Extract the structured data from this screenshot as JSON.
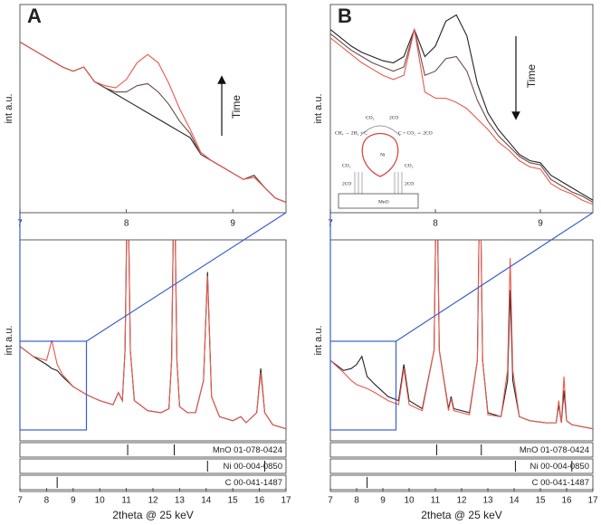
{
  "chart_data": [
    {
      "type": "line",
      "label": "A",
      "ylabel": "int a.u.",
      "annotation": "Time",
      "x": [
        7,
        7.1,
        7.2,
        7.3,
        7.4,
        7.5,
        7.6,
        7.7,
        7.8,
        7.9,
        8,
        8.1,
        8.2,
        8.3,
        8.4,
        8.5,
        8.6,
        8.7,
        8.8,
        8.9,
        9,
        9.1,
        9.2,
        9.3,
        9.4,
        9.5
      ],
      "series": [
        {
          "color": "#222222",
          "values": [
            82,
            79,
            76,
            73,
            70,
            68,
            70,
            63,
            60,
            57,
            54,
            51,
            48,
            45,
            42,
            39,
            36,
            28,
            25,
            22,
            19,
            16,
            18,
            12,
            7,
            5
          ]
        },
        {
          "color": "#6b4a4a",
          "values": [
            82,
            79,
            76,
            73,
            70,
            68,
            70,
            63,
            60,
            58,
            58,
            61,
            62,
            58,
            52,
            44,
            38,
            28,
            25,
            22,
            19,
            16,
            18,
            12,
            7,
            5
          ]
        },
        {
          "color": "#e8594f",
          "values": [
            82,
            79,
            76,
            73,
            70,
            68,
            70,
            63,
            61,
            60,
            64,
            72,
            76,
            72,
            62,
            50,
            40,
            29,
            25,
            22,
            19,
            16,
            17,
            12,
            7,
            5
          ]
        }
      ],
      "xlim": [
        7,
        9.5
      ],
      "xticks": [
        7,
        8,
        9
      ],
      "ylim": [
        0,
        100
      ]
    },
    {
      "type": "line",
      "ylabel": "int a.u.",
      "xlabel": "2theta @ 25 keV",
      "x": [
        7,
        7.5,
        8,
        8.2,
        8.4,
        8.6,
        9,
        9.5,
        10,
        10.5,
        10.7,
        10.85,
        10.95,
        11.05,
        11.15,
        11.3,
        11.8,
        12.3,
        12.6,
        12.7,
        12.8,
        12.9,
        13,
        13.3,
        13.6,
        13.9,
        14.05,
        14.2,
        14.5,
        15,
        15.3,
        15.5,
        15.9,
        16.05,
        16.2,
        16.5,
        17
      ],
      "series": [
        {
          "color": "#222222",
          "values": [
            47,
            42,
            38,
            36,
            35,
            32,
            27,
            23,
            20,
            18,
            24,
            20,
            45,
            140,
            45,
            20,
            15,
            14,
            16,
            40,
            140,
            40,
            17,
            14,
            14,
            30,
            84,
            22,
            12,
            10,
            12,
            9,
            14,
            36,
            14,
            8,
            6
          ]
        },
        {
          "color": "#e8594f",
          "values": [
            47,
            42,
            40,
            50,
            38,
            33,
            27,
            23,
            20,
            18,
            24,
            20,
            45,
            140,
            45,
            20,
            15,
            14,
            16,
            40,
            140,
            40,
            17,
            14,
            14,
            30,
            82,
            22,
            12,
            10,
            12,
            9,
            14,
            34,
            14,
            8,
            6
          ]
        }
      ],
      "xlim": [
        7,
        17
      ],
      "xticks": [
        7,
        8,
        9,
        10,
        11,
        12,
        13,
        14,
        15,
        16,
        17
      ],
      "ylim": [
        0,
        100
      ],
      "references": [
        {
          "label": "MnO 01-078-0424",
          "peaks": [
            11.05,
            12.8
          ]
        },
        {
          "label": "Ni 00-004-0850",
          "peaks": [
            14.05,
            16.2
          ]
        },
        {
          "label": "C 00-041-1487",
          "peaks": [
            8.4
          ]
        }
      ]
    },
    {
      "type": "line",
      "label": "B",
      "ylabel": "int a.u.",
      "annotation": "Time",
      "x": [
        7,
        7.1,
        7.2,
        7.3,
        7.4,
        7.5,
        7.6,
        7.7,
        7.8,
        7.9,
        8,
        8.1,
        8.2,
        8.3,
        8.4,
        8.5,
        8.6,
        8.7,
        8.8,
        8.9,
        9,
        9.1,
        9.2,
        9.3,
        9.4,
        9.5
      ],
      "series": [
        {
          "color": "#222222",
          "values": [
            88,
            84,
            80,
            77,
            75,
            73,
            72,
            75,
            88,
            75,
            80,
            92,
            95,
            85,
            62,
            48,
            40,
            34,
            28,
            25,
            24,
            18,
            15,
            12,
            9,
            6
          ]
        },
        {
          "color": "#6b4a4a",
          "values": [
            86,
            82,
            78,
            75,
            72,
            70,
            68,
            70,
            88,
            66,
            68,
            74,
            75,
            68,
            54,
            44,
            37,
            32,
            27,
            24,
            23,
            16,
            13,
            10,
            8,
            5
          ]
        },
        {
          "color": "#e8594f",
          "values": [
            84,
            80,
            76,
            72,
            69,
            66,
            64,
            66,
            88,
            58,
            55,
            55,
            53,
            50,
            45,
            40,
            34,
            30,
            25,
            22,
            21,
            14,
            11,
            9,
            6,
            4
          ]
        }
      ],
      "xlim": [
        7,
        9.5
      ],
      "xticks": [
        7,
        8,
        9
      ],
      "ylim": [
        0,
        100
      ],
      "inset": {
        "labels": [
          "CO₂",
          "2CO",
          "CH₄ → 2H₂ + C",
          "C + CO₂ ⇔ 2CO",
          "Ni",
          "CO₂",
          "2CO",
          "CO₂",
          "2CO",
          "MnO"
        ]
      }
    },
    {
      "type": "line",
      "ylabel": "int a.u.",
      "xlabel": "2theta @ 25 keV",
      "x": [
        7,
        7.5,
        7.8,
        8,
        8.2,
        8.4,
        8.7,
        9.2,
        9.6,
        9.8,
        10,
        10.5,
        10.95,
        11.05,
        11.15,
        11.5,
        11.6,
        11.7,
        12.3,
        12.6,
        12.7,
        12.8,
        13,
        13.5,
        13.75,
        13.85,
        13.95,
        14.2,
        14.6,
        15.2,
        15.6,
        15.7,
        15.8,
        15.9,
        16,
        16.2,
        17
      ],
      "series": [
        {
          "color": "#222222",
          "values": [
            40,
            35,
            36,
            38,
            42,
            32,
            28,
            22,
            20,
            38,
            20,
            16,
            45,
            140,
            45,
            16,
            22,
            16,
            14,
            40,
            140,
            40,
            14,
            12,
            30,
            75,
            30,
            12,
            10,
            9,
            9,
            18,
            9,
            25,
            10,
            8,
            6
          ]
        },
        {
          "color": "#e8594f",
          "values": [
            40,
            34,
            30,
            28,
            27,
            26,
            24,
            20,
            18,
            36,
            18,
            15,
            45,
            140,
            45,
            15,
            21,
            15,
            13,
            40,
            140,
            40,
            13,
            12,
            35,
            91,
            35,
            12,
            10,
            9,
            9,
            20,
            9,
            32,
            10,
            8,
            6
          ]
        }
      ],
      "xlim": [
        7,
        17
      ],
      "xticks": [
        7,
        8,
        9,
        10,
        11,
        12,
        13,
        14,
        15,
        16,
        17
      ],
      "ylim": [
        0,
        100
      ],
      "references": [
        {
          "label": "MnO 01-078-0424",
          "peaks": [
            11.05,
            12.75
          ]
        },
        {
          "label": "Ni 00-004-0850",
          "peaks": [
            14.05,
            16.2
          ]
        },
        {
          "label": "C 00-041-1487",
          "peaks": [
            8.4
          ]
        }
      ]
    }
  ]
}
